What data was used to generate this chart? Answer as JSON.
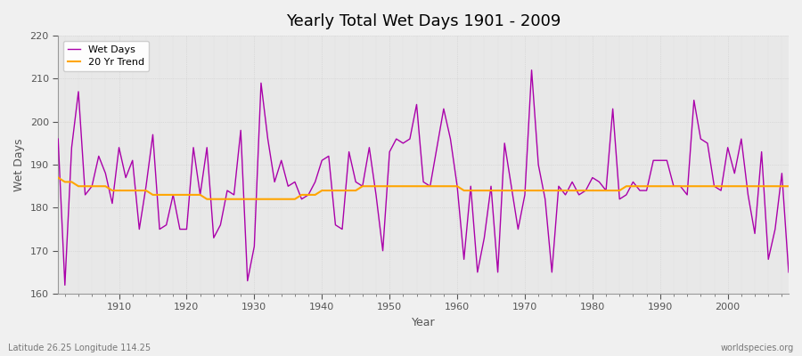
{
  "title": "Yearly Total Wet Days 1901 - 2009",
  "xlabel": "Year",
  "ylabel": "Wet Days",
  "xlim": [
    1901,
    2009
  ],
  "ylim": [
    160,
    220
  ],
  "yticks": [
    160,
    170,
    180,
    190,
    200,
    210,
    220
  ],
  "bg_color": "#f0f0f0",
  "plot_bg_color": "#e8e8e8",
  "wet_days_color": "#aa00aa",
  "trend_color": "#ffa500",
  "footnote_left": "Latitude 26.25 Longitude 114.25",
  "footnote_right": "worldspecies.org",
  "years": [
    1901,
    1902,
    1903,
    1904,
    1905,
    1906,
    1907,
    1908,
    1909,
    1910,
    1911,
    1912,
    1913,
    1914,
    1915,
    1916,
    1917,
    1918,
    1919,
    1920,
    1921,
    1922,
    1923,
    1924,
    1925,
    1926,
    1927,
    1928,
    1929,
    1930,
    1931,
    1932,
    1933,
    1934,
    1935,
    1936,
    1937,
    1938,
    1939,
    1940,
    1941,
    1942,
    1943,
    1944,
    1945,
    1946,
    1947,
    1948,
    1949,
    1950,
    1951,
    1952,
    1953,
    1954,
    1955,
    1956,
    1957,
    1958,
    1959,
    1960,
    1961,
    1962,
    1963,
    1964,
    1965,
    1966,
    1967,
    1968,
    1969,
    1970,
    1971,
    1972,
    1973,
    1974,
    1975,
    1976,
    1977,
    1978,
    1979,
    1980,
    1981,
    1982,
    1983,
    1984,
    1985,
    1986,
    1987,
    1988,
    1989,
    1990,
    1991,
    1992,
    1993,
    1994,
    1995,
    1996,
    1997,
    1998,
    1999,
    2000,
    2001,
    2002,
    2003,
    2004,
    2005,
    2006,
    2007,
    2008,
    2009
  ],
  "wet_days": [
    196,
    162,
    194,
    207,
    183,
    185,
    192,
    188,
    181,
    194,
    187,
    191,
    175,
    185,
    197,
    175,
    176,
    183,
    175,
    175,
    194,
    183,
    194,
    173,
    176,
    184,
    183,
    198,
    163,
    171,
    209,
    196,
    186,
    191,
    185,
    186,
    182,
    183,
    186,
    191,
    192,
    176,
    175,
    193,
    186,
    185,
    194,
    183,
    170,
    193,
    196,
    195,
    196,
    204,
    186,
    185,
    194,
    203,
    196,
    185,
    168,
    185,
    165,
    173,
    185,
    165,
    195,
    185,
    175,
    183,
    212,
    190,
    182,
    165,
    185,
    183,
    186,
    183,
    184,
    187,
    186,
    184,
    203,
    182,
    183,
    186,
    184,
    184,
    191,
    191,
    191,
    185,
    185,
    183,
    205,
    196,
    195,
    185,
    184,
    194,
    188,
    196,
    183,
    174,
    193,
    168,
    175,
    188,
    165
  ],
  "trend": [
    187,
    186,
    186,
    185,
    185,
    185,
    185,
    185,
    184,
    184,
    184,
    184,
    184,
    184,
    183,
    183,
    183,
    183,
    183,
    183,
    183,
    183,
    182,
    182,
    182,
    182,
    182,
    182,
    182,
    182,
    182,
    182,
    182,
    182,
    182,
    182,
    183,
    183,
    183,
    184,
    184,
    184,
    184,
    184,
    184,
    185,
    185,
    185,
    185,
    185,
    185,
    185,
    185,
    185,
    185,
    185,
    185,
    185,
    185,
    185,
    184,
    184,
    184,
    184,
    184,
    184,
    184,
    184,
    184,
    184,
    184,
    184,
    184,
    184,
    184,
    184,
    184,
    184,
    184,
    184,
    184,
    184,
    184,
    184,
    185,
    185,
    185,
    185,
    185,
    185,
    185,
    185,
    185,
    185,
    185,
    185,
    185,
    185,
    185,
    185,
    185,
    185,
    185,
    185,
    185,
    185,
    185,
    185,
    185
  ]
}
